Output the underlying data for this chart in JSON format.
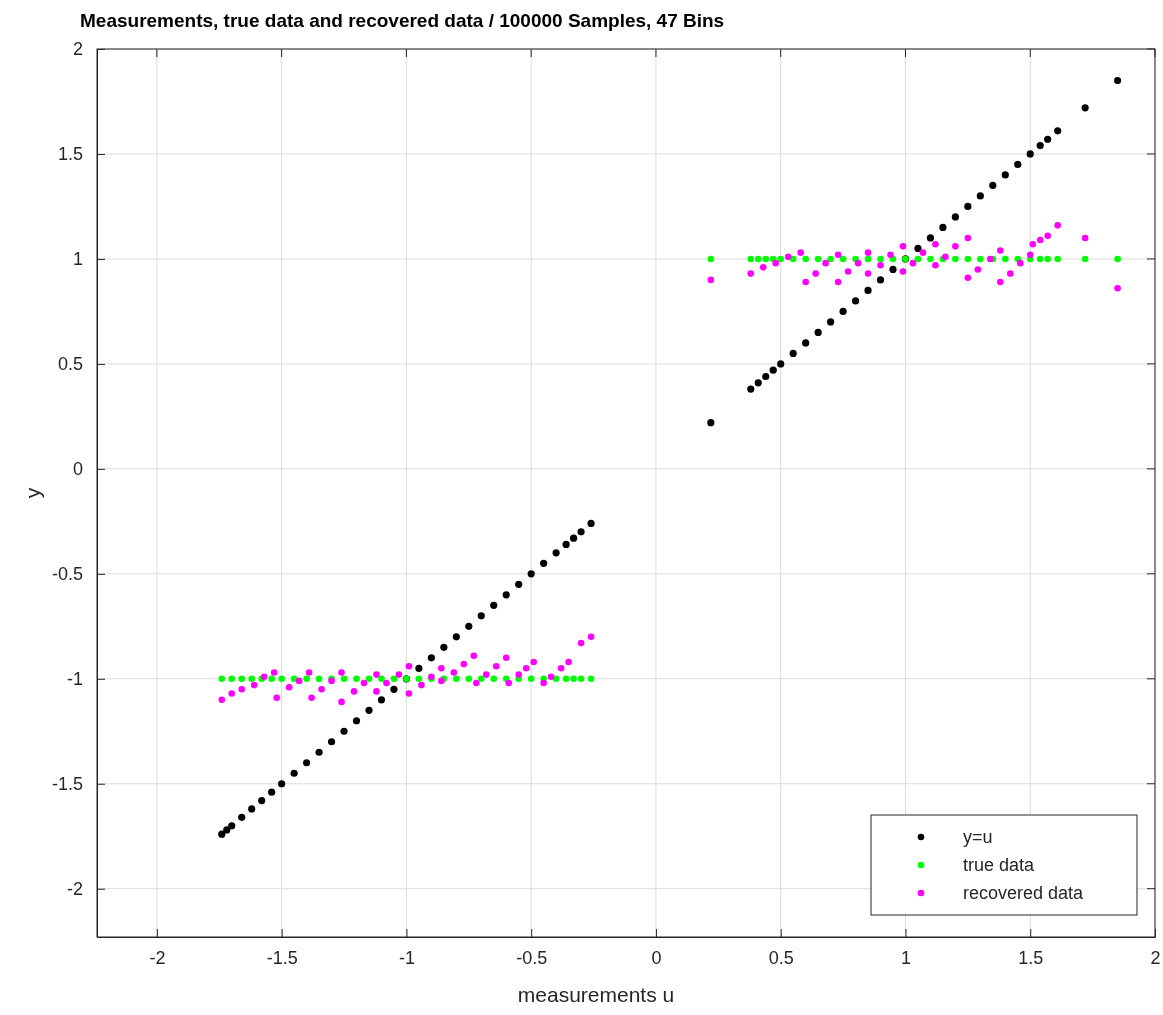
{
  "chart_data": {
    "type": "scatter",
    "title": "Measurements, true data and recovered data / 100000 Samples, 47 Bins",
    "xlabel": "measurements u",
    "ylabel": "y",
    "xlim": [
      -2.24,
      2
    ],
    "ylim": [
      -2.23,
      2
    ],
    "xticks": [
      -2,
      -1.5,
      -1,
      -0.5,
      0,
      0.5,
      1,
      1.5,
      2
    ],
    "yticks": [
      -2,
      -1.5,
      -1,
      -0.5,
      0,
      0.5,
      1,
      1.5,
      2
    ],
    "grid": true,
    "legend": "bottom right",
    "marker": "circle",
    "series": [
      {
        "name": "y=u",
        "color": "#000000",
        "x": [
          -1.74,
          -1.72,
          -1.7,
          -1.66,
          -1.62,
          -1.58,
          -1.54,
          -1.5,
          -1.45,
          -1.4,
          -1.35,
          -1.3,
          -1.25,
          -1.2,
          -1.15,
          -1.1,
          -1.05,
          -1,
          -0.95,
          -0.9,
          -0.85,
          -0.8,
          -0.75,
          -0.7,
          -0.65,
          -0.6,
          -0.55,
          -0.5,
          -0.45,
          -0.4,
          -0.36,
          -0.33,
          -0.3,
          -0.26,
          0.22,
          0.38,
          0.41,
          0.44,
          0.47,
          0.5,
          0.55,
          0.6,
          0.65,
          0.7,
          0.75,
          0.8,
          0.85,
          0.9,
          0.95,
          1,
          1.05,
          1.1,
          1.15,
          1.2,
          1.25,
          1.3,
          1.35,
          1.4,
          1.45,
          1.5,
          1.54,
          1.57,
          1.61,
          1.72,
          1.85
        ],
        "values": [
          -1.74,
          -1.72,
          -1.7,
          -1.66,
          -1.62,
          -1.58,
          -1.54,
          -1.5,
          -1.45,
          -1.4,
          -1.35,
          -1.3,
          -1.25,
          -1.2,
          -1.15,
          -1.1,
          -1.05,
          -1,
          -0.95,
          -0.9,
          -0.85,
          -0.8,
          -0.75,
          -0.7,
          -0.65,
          -0.6,
          -0.55,
          -0.5,
          -0.45,
          -0.4,
          -0.36,
          -0.33,
          -0.3,
          -0.26,
          0.22,
          0.38,
          0.41,
          0.44,
          0.47,
          0.5,
          0.55,
          0.6,
          0.65,
          0.7,
          0.75,
          0.8,
          0.85,
          0.9,
          0.95,
          1,
          1.05,
          1.1,
          1.15,
          1.2,
          1.25,
          1.3,
          1.35,
          1.4,
          1.45,
          1.5,
          1.54,
          1.57,
          1.61,
          1.72,
          1.85
        ]
      },
      {
        "name": "true data",
        "color": "#00ff00",
        "x": [
          -1.74,
          -1.7,
          -1.66,
          -1.62,
          -1.58,
          -1.54,
          -1.5,
          -1.45,
          -1.4,
          -1.35,
          -1.3,
          -1.25,
          -1.2,
          -1.15,
          -1.1,
          -1.05,
          -1,
          -0.95,
          -0.9,
          -0.85,
          -0.8,
          -0.75,
          -0.7,
          -0.65,
          -0.6,
          -0.55,
          -0.5,
          -0.45,
          -0.4,
          -0.36,
          -0.33,
          -0.3,
          -0.26,
          0.22,
          0.38,
          0.41,
          0.44,
          0.47,
          0.5,
          0.55,
          0.6,
          0.65,
          0.7,
          0.75,
          0.8,
          0.85,
          0.9,
          0.95,
          1,
          1.05,
          1.1,
          1.15,
          1.2,
          1.25,
          1.3,
          1.35,
          1.4,
          1.45,
          1.5,
          1.54,
          1.57,
          1.61,
          1.72,
          1.85
        ],
        "values": [
          -1,
          -1,
          -1,
          -1,
          -1,
          -1,
          -1,
          -1,
          -1,
          -1,
          -1,
          -1,
          -1,
          -1,
          -1,
          -1,
          -1,
          -1,
          -1,
          -1,
          -1,
          -1,
          -1,
          -1,
          -1,
          -1,
          -1,
          -1,
          -1,
          -1,
          -1,
          -1,
          -1,
          1,
          1,
          1,
          1,
          1,
          1,
          1,
          1,
          1,
          1,
          1,
          1,
          1,
          1,
          1,
          1,
          1,
          1,
          1,
          1,
          1,
          1,
          1,
          1,
          1,
          1,
          1,
          1,
          1,
          1,
          1
        ]
      },
      {
        "name": "recovered data",
        "color": "#ff00ff",
        "x": [
          -1.74,
          -1.7,
          -1.66,
          -1.61,
          -1.57,
          -1.53,
          -1.52,
          -1.47,
          -1.43,
          -1.39,
          -1.38,
          -1.34,
          -1.3,
          -1.26,
          -1.26,
          -1.21,
          -1.17,
          -1.12,
          -1.12,
          -1.08,
          -1.03,
          -0.99,
          -0.99,
          -0.94,
          -0.9,
          -0.86,
          -0.86,
          -0.81,
          -0.77,
          -0.73,
          -0.72,
          -0.68,
          -0.64,
          -0.6,
          -0.59,
          -0.55,
          -0.52,
          -0.49,
          -0.45,
          -0.42,
          -0.38,
          -0.35,
          -0.3,
          -0.26,
          0.22,
          0.38,
          0.43,
          0.48,
          0.53,
          0.58,
          0.6,
          0.64,
          0.68,
          0.73,
          0.73,
          0.77,
          0.81,
          0.85,
          0.85,
          0.9,
          0.94,
          0.99,
          0.99,
          1.03,
          1.07,
          1.12,
          1.12,
          1.16,
          1.2,
          1.25,
          1.25,
          1.29,
          1.34,
          1.38,
          1.38,
          1.42,
          1.46,
          1.5,
          1.51,
          1.54,
          1.57,
          1.61,
          1.72,
          1.85
        ],
        "values": [
          -1.1,
          -1.07,
          -1.05,
          -1.03,
          -0.99,
          -0.97,
          -1.09,
          -1.04,
          -1.01,
          -0.97,
          -1.09,
          -1.05,
          -1.01,
          -0.97,
          -1.11,
          -1.06,
          -1.02,
          -0.98,
          -1.06,
          -1.02,
          -0.98,
          -0.94,
          -1.07,
          -1.03,
          -0.99,
          -0.95,
          -1.01,
          -0.97,
          -0.93,
          -0.89,
          -1.02,
          -0.98,
          -0.94,
          -0.9,
          -1.02,
          -0.98,
          -0.95,
          -0.92,
          -1.02,
          -0.99,
          -0.95,
          -0.92,
          -0.83,
          -0.8,
          0.9,
          0.93,
          0.96,
          0.98,
          1.01,
          1.03,
          0.89,
          0.93,
          0.98,
          1.02,
          0.89,
          0.94,
          0.98,
          1.03,
          0.93,
          0.97,
          1.02,
          1.06,
          0.94,
          0.98,
          1.03,
          1.07,
          0.97,
          1.01,
          1.06,
          1.1,
          0.91,
          0.95,
          1,
          1.04,
          0.89,
          0.93,
          0.98,
          1.02,
          1.07,
          1.09,
          1.11,
          1.16,
          1.1,
          0.86
        ]
      }
    ]
  }
}
